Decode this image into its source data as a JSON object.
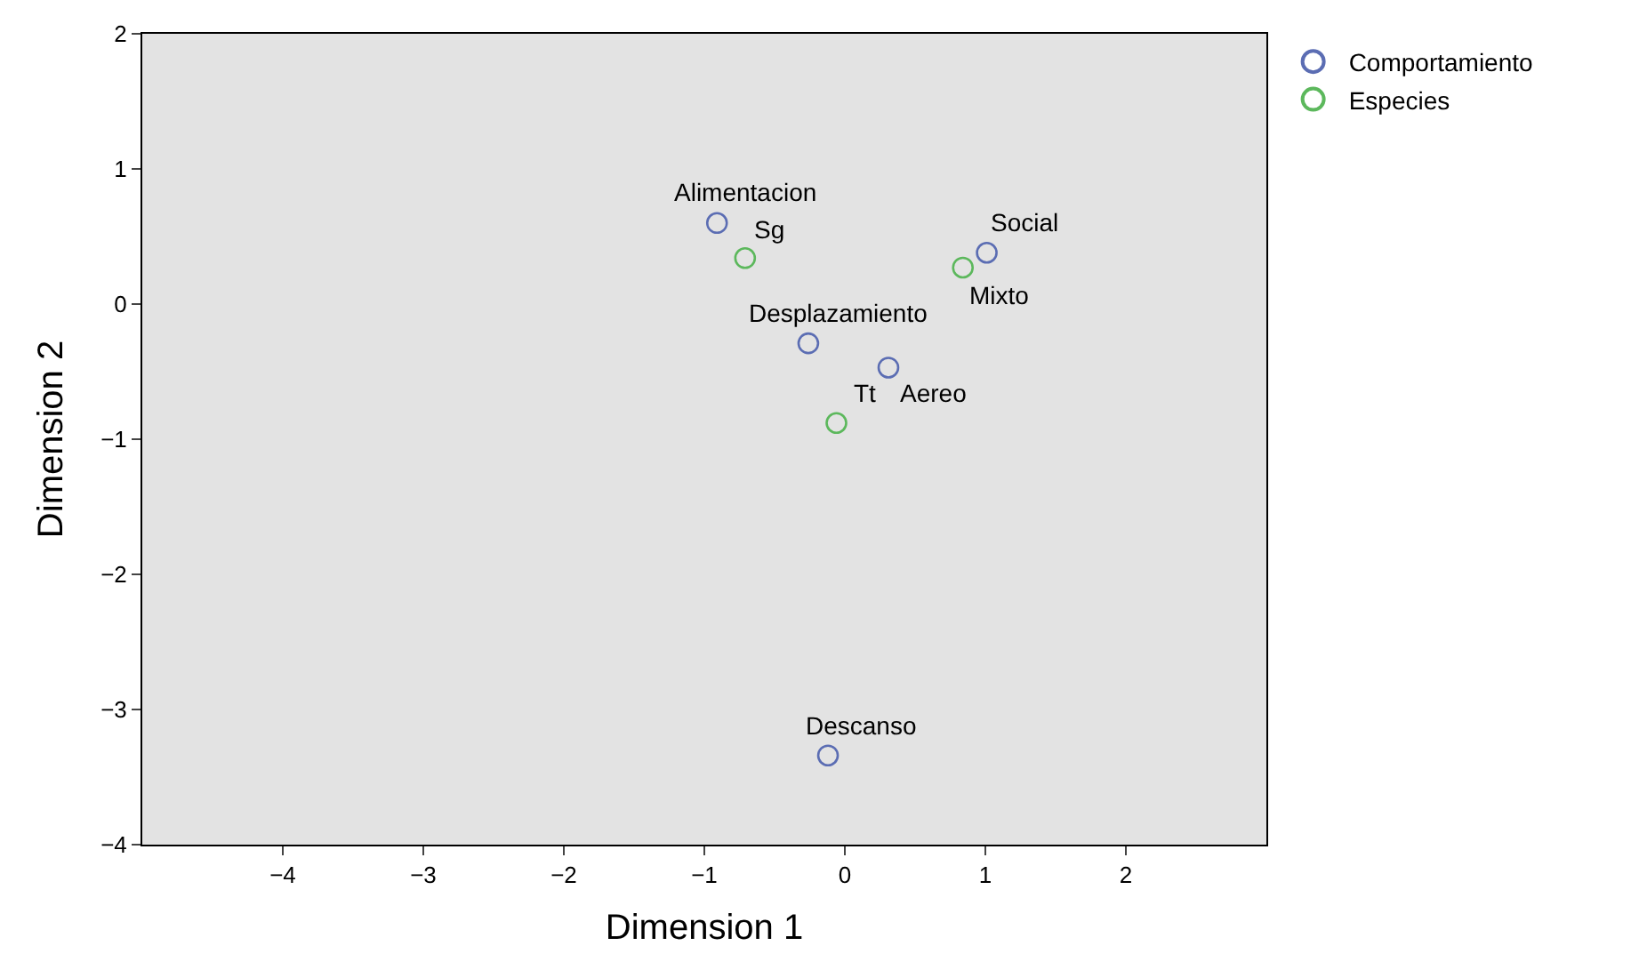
{
  "chart_data": {
    "type": "scatter",
    "xlabel": "Dimension 1",
    "ylabel": "Dimension 2",
    "xlim": [
      -5,
      3
    ],
    "ylim": [
      -4,
      2
    ],
    "xticks": [
      -4,
      -3,
      -2,
      -1,
      0,
      1,
      2
    ],
    "yticks": [
      -4,
      -3,
      -2,
      -1,
      0,
      1,
      2
    ],
    "series": [
      {
        "name": "Comportamiento",
        "color": "#5b6db3",
        "x": [
          -0.91,
          1.01,
          -0.26,
          0.31,
          -0.12
        ],
        "values": [
          0.6,
          0.38,
          -0.29,
          -0.47,
          -3.34
        ]
      },
      {
        "name": "Especies",
        "color": "#5cb85c",
        "x": [
          -0.71,
          0.84,
          -0.06
        ],
        "values": [
          0.34,
          0.27,
          -0.88
        ]
      }
    ],
    "annotations": [
      {
        "text": "Alimentacion",
        "x": -0.91,
        "y": 0.6
      },
      {
        "text": "Social",
        "x": 1.01,
        "y": 0.38
      },
      {
        "text": "Desplazamiento",
        "x": -0.26,
        "y": -0.29
      },
      {
        "text": "Aereo",
        "x": 0.31,
        "y": -0.47
      },
      {
        "text": "Descanso",
        "x": -0.12,
        "y": -3.34
      },
      {
        "text": "Sg",
        "x": -0.71,
        "y": 0.34
      },
      {
        "text": "Mixto",
        "x": 0.84,
        "y": 0.27
      },
      {
        "text": "Tt",
        "x": -0.06,
        "y": -0.88
      }
    ],
    "marker": "circle",
    "grid": false,
    "legend": "top right"
  }
}
